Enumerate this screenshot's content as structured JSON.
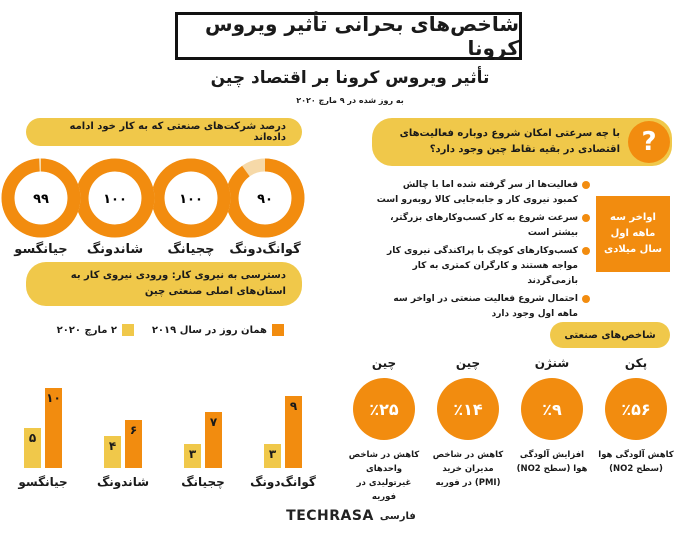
{
  "header": {
    "main_title": "شاخص‌های بحرانی تأثیر ویروس کرونا",
    "subtitle": "تأثیر ویروس کرونا بر اقتصاد چین",
    "date_note": "به روز شده در ۹ مارچ ۲۰۲۰"
  },
  "companies": {
    "heading": "درصد شرکت‌های صنعتی که به کار خود ادامه داده‌اند",
    "items": [
      {
        "province": "گوانگ‌دونگ",
        "value_label": "۹۰",
        "value": 90
      },
      {
        "province": "چجیانگ",
        "value_label": "۱۰۰",
        "value": 100
      },
      {
        "province": "شاندونگ",
        "value_label": "۱۰۰",
        "value": 100
      },
      {
        "province": "جیانگسو",
        "value_label": "۹۹",
        "value": 99
      }
    ]
  },
  "workforce": {
    "heading": "دسترسی به نیروی کار: ورودی نیروی کار به استان‌های اصلی صنعتی چین",
    "legend_2020": "۲ مارچ ۲۰۲۰",
    "legend_2019": "همان روز در سال ۲۰۱۹"
  },
  "chart_data": {
    "type": "bar",
    "categories": [
      "جیانگسو",
      "شاندونگ",
      "چجیانگ",
      "گوانگ‌دونگ"
    ],
    "series": [
      {
        "name": "۲ مارچ ۲۰۲۰",
        "values": [
          5,
          4,
          3,
          3
        ],
        "labels": [
          "۵",
          "۴",
          "۳",
          "۳"
        ]
      },
      {
        "name": "همان روز در سال ۲۰۱۹",
        "values": [
          10,
          6,
          7,
          9
        ],
        "labels": [
          "۱۰",
          "۶",
          "۷",
          "۹"
        ]
      }
    ],
    "title": "",
    "xlabel": "",
    "ylabel": "",
    "ylim": [
      0,
      10
    ]
  },
  "question": {
    "text": "با چه سرعتی امکان شروع دوباره فعالیت‌های اقتصادی در بقیه نقاط چین وجود دارد؟",
    "bullets": [
      "فعالیت‌ها از سر گرفته شده اما با چالش کمبود نیروی کار و جابه‌جایی کالا روبه‌رو است",
      "سرعت شروع به کار کسب‌وکارهای بزرگتر، بیشتر است",
      "کسب‌وکارهای کوچک با پراکندگی نیروی کار مواجه هستند و کارگران کمتری به کار بازمی‌گردند",
      "احتمال شروع فعالیت صنعتی در اواخر سه ماهه اول وجود دارد"
    ],
    "side_box": "اواخر سه ماهه اول سال میلادی"
  },
  "indicators": {
    "heading": "شاخص‌های صنعتی",
    "items": [
      {
        "city": "پکن",
        "value": "٪۵۶",
        "desc": "کاهش آلودگی هوا (سطح NO2)"
      },
      {
        "city": "شنژن",
        "value": "٪۹",
        "desc": "افزایش آلودگی هوا (سطح NO2)"
      },
      {
        "city": "چین",
        "value": "٪۱۴",
        "desc": "کاهش در شاخص مدیران خرید (PMI) در فوریه"
      },
      {
        "city": "چین",
        "value": "٪۲۵",
        "desc": "کاهش در شاخص واحدهای غیرتولیدی در فوریه"
      }
    ]
  },
  "footer": {
    "brand": "TECHRASA",
    "brand_sub": "فارسی"
  },
  "colors": {
    "orange": "#f28c0f",
    "yellow": "#f0c84a",
    "ring_track": "#f6d9a8"
  }
}
